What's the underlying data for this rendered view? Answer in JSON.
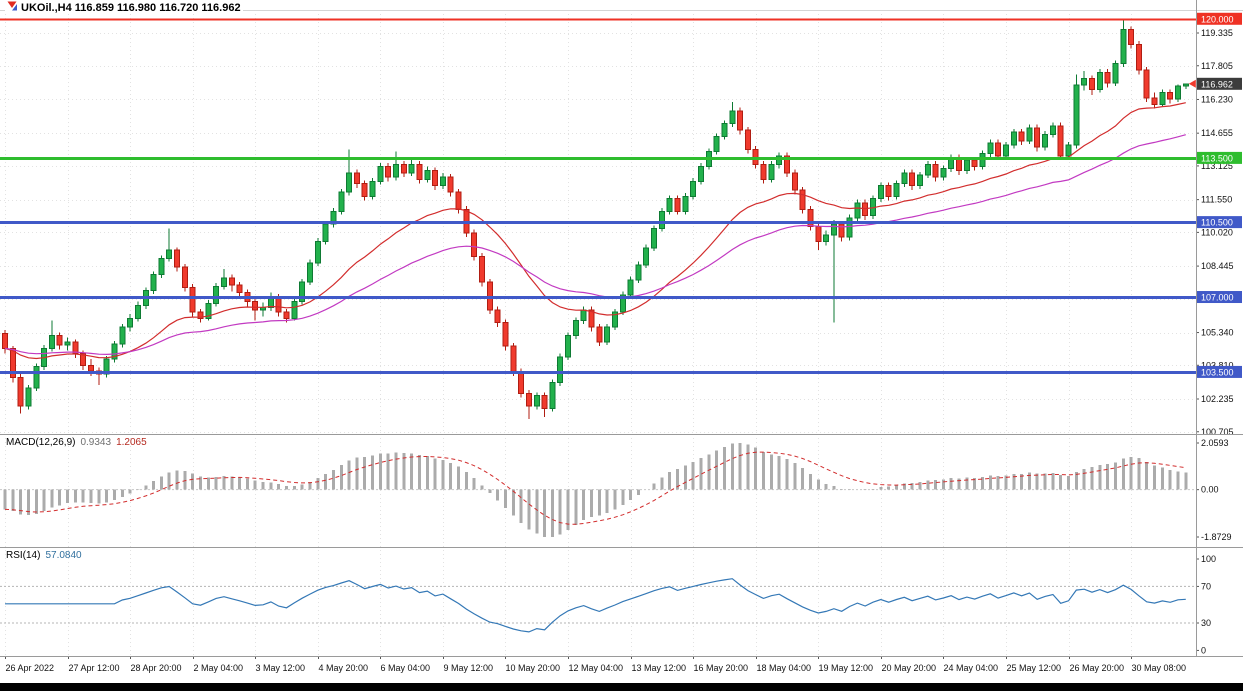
{
  "window": {
    "title_text": "UKOil.,H4 116.859 116.980 116.720 116.962",
    "symbol": "UKOil.",
    "timeframe": "H4",
    "open": "116.859",
    "high": "116.980",
    "low": "116.720",
    "close": "116.962"
  },
  "colors": {
    "background": "#ffffff",
    "grid": "#e2e2e2",
    "candle_up": "#22b14c",
    "candle_up_border": "#0e7a33",
    "candle_down": "#f03a2d",
    "candle_down_border": "#b01d12",
    "ma_fast": "#d22d2d",
    "ma_slow": "#c23ac2",
    "hline_red": "#ef3124",
    "hline_green": "#2ebd2e",
    "hline_blue": "#4059c8",
    "current_price_badge": "#3c3c3c",
    "macd_histogram": "#ababab",
    "macd_signal": "#d22d2d",
    "rsi_line": "#3478b6"
  },
  "chart_data": {
    "type": "candlestick",
    "symbol": "UKOil.",
    "timeframe": "H4",
    "title": "UKOil.,H4 116.859 116.980 116.720 116.962",
    "price_range_visible": [
      100.6,
      120.41
    ],
    "candles": [
      [
        105.3,
        105.45,
        104.35,
        104.6
      ],
      [
        104.6,
        104.72,
        103.0,
        103.25
      ],
      [
        103.25,
        103.4,
        101.55,
        101.9
      ],
      [
        101.9,
        102.9,
        101.75,
        102.75
      ],
      [
        102.75,
        103.9,
        102.6,
        103.75
      ],
      [
        103.75,
        104.75,
        103.6,
        104.6
      ],
      [
        104.6,
        105.9,
        104.45,
        105.2
      ],
      [
        105.2,
        105.35,
        104.55,
        104.75
      ],
      [
        104.75,
        105.1,
        104.5,
        104.9
      ],
      [
        104.9,
        105.02,
        104.15,
        104.35
      ],
      [
        104.35,
        104.5,
        103.6,
        103.8
      ],
      [
        103.8,
        104.1,
        103.3,
        103.55
      ],
      [
        103.55,
        103.7,
        102.9,
        103.4
      ],
      [
        103.4,
        104.25,
        103.25,
        104.1
      ],
      [
        104.1,
        104.95,
        103.95,
        104.8
      ],
      [
        104.8,
        105.75,
        104.65,
        105.6
      ],
      [
        105.6,
        106.2,
        105.4,
        106.0
      ],
      [
        106.0,
        106.8,
        105.85,
        106.6
      ],
      [
        106.6,
        107.45,
        106.45,
        107.3
      ],
      [
        107.3,
        108.2,
        107.15,
        108.05
      ],
      [
        108.05,
        108.95,
        107.9,
        108.8
      ],
      [
        108.8,
        110.2,
        108.65,
        109.2
      ],
      [
        109.2,
        109.32,
        108.2,
        108.4
      ],
      [
        108.4,
        108.55,
        107.25,
        107.45
      ],
      [
        107.45,
        107.6,
        106.1,
        106.3
      ],
      [
        106.3,
        106.45,
        105.8,
        106.0
      ],
      [
        106.0,
        106.85,
        105.9,
        106.7
      ],
      [
        106.7,
        107.65,
        106.55,
        107.5
      ],
      [
        107.5,
        108.3,
        107.35,
        107.9
      ],
      [
        107.9,
        108.05,
        107.25,
        107.55
      ],
      [
        107.55,
        107.7,
        106.95,
        107.2
      ],
      [
        107.2,
        107.35,
        106.55,
        106.8
      ],
      [
        106.8,
        106.95,
        105.9,
        106.4
      ],
      [
        106.4,
        106.75,
        106.1,
        106.5
      ],
      [
        106.5,
        107.2,
        106.35,
        107.0
      ],
      [
        107.0,
        107.15,
        106.1,
        106.3
      ],
      [
        106.3,
        106.45,
        105.8,
        106.0
      ],
      [
        106.0,
        106.95,
        105.9,
        106.8
      ],
      [
        106.8,
        107.85,
        106.65,
        107.7
      ],
      [
        107.7,
        108.75,
        107.55,
        108.6
      ],
      [
        108.6,
        109.75,
        108.45,
        109.6
      ],
      [
        109.6,
        110.55,
        109.45,
        110.4
      ],
      [
        110.4,
        111.15,
        110.25,
        111.0
      ],
      [
        111.0,
        112.05,
        110.85,
        111.9
      ],
      [
        111.9,
        113.9,
        111.75,
        112.8
      ],
      [
        112.8,
        112.95,
        112.1,
        112.3
      ],
      [
        112.3,
        112.45,
        111.5,
        111.7
      ],
      [
        111.7,
        112.55,
        111.55,
        112.4
      ],
      [
        112.4,
        113.25,
        112.25,
        113.1
      ],
      [
        113.1,
        113.25,
        112.4,
        112.6
      ],
      [
        112.6,
        113.8,
        112.45,
        113.2
      ],
      [
        113.2,
        113.35,
        112.6,
        112.8
      ],
      [
        112.8,
        113.4,
        112.65,
        113.2
      ],
      [
        113.2,
        113.35,
        112.3,
        112.5
      ],
      [
        112.5,
        113.1,
        112.35,
        112.9
      ],
      [
        112.9,
        113.05,
        112.0,
        112.2
      ],
      [
        112.2,
        112.8,
        112.05,
        112.6
      ],
      [
        112.6,
        112.75,
        111.7,
        111.9
      ],
      [
        111.9,
        112.05,
        110.9,
        111.1
      ],
      [
        111.1,
        111.25,
        109.8,
        110.0
      ],
      [
        110.0,
        110.15,
        108.7,
        108.9
      ],
      [
        108.9,
        109.05,
        107.5,
        107.7
      ],
      [
        107.7,
        107.85,
        106.2,
        106.4
      ],
      [
        106.4,
        106.55,
        105.6,
        105.8
      ],
      [
        105.8,
        105.95,
        104.5,
        104.7
      ],
      [
        104.7,
        104.85,
        103.3,
        103.5
      ],
      [
        103.5,
        103.65,
        102.3,
        102.5
      ],
      [
        102.5,
        102.65,
        101.3,
        101.9
      ],
      [
        101.9,
        102.55,
        101.75,
        102.4
      ],
      [
        102.4,
        102.55,
        101.4,
        101.8
      ],
      [
        101.8,
        103.15,
        101.65,
        103.0
      ],
      [
        103.0,
        104.35,
        102.85,
        104.2
      ],
      [
        104.2,
        105.35,
        104.05,
        105.2
      ],
      [
        105.2,
        106.05,
        105.05,
        105.9
      ],
      [
        105.9,
        106.55,
        105.75,
        106.4
      ],
      [
        106.4,
        106.55,
        105.4,
        105.6
      ],
      [
        105.6,
        105.75,
        104.7,
        104.9
      ],
      [
        104.9,
        105.75,
        104.75,
        105.6
      ],
      [
        105.6,
        106.45,
        105.45,
        106.3
      ],
      [
        106.3,
        107.25,
        106.15,
        107.1
      ],
      [
        107.1,
        107.95,
        106.95,
        107.8
      ],
      [
        107.8,
        108.65,
        107.65,
        108.5
      ],
      [
        108.5,
        109.45,
        108.35,
        109.3
      ],
      [
        109.3,
        110.35,
        109.15,
        110.2
      ],
      [
        110.2,
        111.15,
        110.05,
        111.0
      ],
      [
        111.0,
        111.75,
        110.85,
        111.6
      ],
      [
        111.6,
        111.75,
        110.85,
        111.0
      ],
      [
        111.0,
        111.85,
        110.85,
        111.7
      ],
      [
        111.7,
        112.55,
        111.55,
        112.4
      ],
      [
        112.4,
        113.25,
        112.25,
        113.1
      ],
      [
        113.1,
        113.95,
        112.95,
        113.8
      ],
      [
        113.8,
        114.65,
        113.65,
        114.5
      ],
      [
        114.5,
        115.25,
        114.35,
        115.1
      ],
      [
        115.1,
        116.1,
        114.95,
        115.7
      ],
      [
        115.7,
        115.85,
        114.6,
        114.8
      ],
      [
        114.8,
        114.95,
        113.7,
        113.9
      ],
      [
        113.9,
        114.05,
        113.0,
        113.2
      ],
      [
        113.2,
        113.35,
        112.3,
        112.5
      ],
      [
        112.5,
        113.35,
        112.35,
        113.2
      ],
      [
        113.2,
        113.75,
        113.0,
        113.6
      ],
      [
        113.6,
        113.75,
        112.6,
        112.8
      ],
      [
        112.8,
        112.95,
        111.8,
        112.0
      ],
      [
        112.0,
        112.15,
        110.9,
        111.1
      ],
      [
        111.1,
        111.25,
        110.1,
        110.3
      ],
      [
        110.3,
        110.45,
        109.2,
        109.6
      ],
      [
        109.6,
        110.1,
        109.4,
        109.9
      ],
      [
        109.9,
        110.6,
        105.8,
        110.4
      ],
      [
        110.4,
        110.55,
        109.6,
        109.8
      ],
      [
        109.8,
        110.85,
        109.65,
        110.7
      ],
      [
        110.7,
        111.55,
        110.55,
        111.4
      ],
      [
        111.4,
        111.55,
        110.6,
        110.8
      ],
      [
        110.8,
        111.75,
        110.65,
        111.6
      ],
      [
        111.6,
        112.35,
        111.45,
        112.2
      ],
      [
        112.2,
        112.35,
        111.5,
        111.7
      ],
      [
        111.7,
        112.45,
        111.55,
        112.3
      ],
      [
        112.3,
        112.95,
        112.15,
        112.8
      ],
      [
        112.8,
        112.95,
        112.0,
        112.2
      ],
      [
        112.2,
        112.85,
        112.05,
        112.7
      ],
      [
        112.7,
        113.35,
        112.55,
        113.2
      ],
      [
        113.2,
        113.35,
        112.4,
        112.6
      ],
      [
        112.6,
        113.15,
        112.45,
        113.0
      ],
      [
        113.0,
        113.65,
        112.85,
        113.5
      ],
      [
        113.5,
        113.65,
        112.7,
        112.9
      ],
      [
        112.9,
        113.55,
        112.75,
        113.4
      ],
      [
        113.4,
        113.55,
        112.9,
        113.1
      ],
      [
        113.1,
        113.85,
        112.95,
        113.7
      ],
      [
        113.7,
        114.35,
        113.55,
        114.2
      ],
      [
        114.2,
        114.35,
        113.4,
        113.6
      ],
      [
        113.6,
        114.25,
        113.45,
        114.1
      ],
      [
        114.1,
        114.85,
        113.95,
        114.7
      ],
      [
        114.7,
        114.85,
        114.1,
        114.3
      ],
      [
        114.3,
        115.05,
        114.15,
        114.9
      ],
      [
        114.9,
        115.05,
        113.8,
        114.0
      ],
      [
        114.0,
        114.75,
        113.85,
        114.6
      ],
      [
        114.6,
        115.15,
        114.45,
        115.0
      ],
      [
        115.0,
        115.15,
        113.4,
        113.6
      ],
      [
        113.6,
        114.25,
        113.45,
        114.1
      ],
      [
        114.1,
        117.4,
        113.95,
        116.9
      ],
      [
        116.9,
        117.55,
        116.65,
        117.2
      ],
      [
        117.2,
        117.35,
        116.45,
        116.7
      ],
      [
        116.7,
        117.65,
        116.55,
        117.5
      ],
      [
        117.5,
        117.65,
        116.8,
        117.0
      ],
      [
        117.0,
        118.05,
        116.85,
        117.9
      ],
      [
        117.9,
        120.0,
        117.75,
        119.5
      ],
      [
        119.5,
        119.65,
        118.6,
        118.8
      ],
      [
        118.8,
        118.95,
        117.4,
        117.6
      ],
      [
        117.6,
        117.75,
        116.1,
        116.3
      ],
      [
        116.3,
        116.55,
        115.8,
        116.0
      ],
      [
        116.0,
        116.7,
        115.9,
        116.55
      ],
      [
        116.55,
        116.7,
        116.05,
        116.25
      ],
      [
        116.25,
        116.92,
        116.1,
        116.86
      ],
      [
        116.859,
        116.98,
        116.72,
        116.962
      ]
    ],
    "moving_averages": [
      {
        "name": "ma-fast",
        "type": "ema",
        "period": 24,
        "color": "#d22d2d"
      },
      {
        "name": "ma-slow",
        "type": "ema",
        "period": 50,
        "color": "#c23ac2"
      }
    ],
    "hlines": [
      {
        "label": "120.000",
        "price": 120.0,
        "color": "#ef3124",
        "width": 2
      },
      {
        "label": "113.500",
        "price": 113.5,
        "color": "#2ebd2e",
        "width": 3
      },
      {
        "label": "110.500",
        "price": 110.5,
        "color": "#4059c8",
        "width": 3
      },
      {
        "label": "107.000",
        "price": 107.0,
        "color": "#4059c8",
        "width": 3
      },
      {
        "label": "103.500",
        "price": 103.5,
        "color": "#4059c8",
        "width": 3
      }
    ],
    "current_price": {
      "value": 116.962,
      "label": "116.962"
    },
    "price_axis": {
      "labels": [
        {
          "label": "119.335",
          "price": 119.335
        },
        {
          "label": "117.805",
          "price": 117.805
        },
        {
          "label": "116.230",
          "price": 116.23
        },
        {
          "label": "114.655",
          "price": 114.655
        },
        {
          "label": "113.125",
          "price": 113.125
        },
        {
          "label": "111.550",
          "price": 111.55
        },
        {
          "label": "110.020",
          "price": 110.02
        },
        {
          "label": "108.445",
          "price": 108.445
        },
        {
          "label": "105.340",
          "price": 105.34
        },
        {
          "label": "103.810",
          "price": 103.81
        },
        {
          "label": "102.235",
          "price": 102.235
        },
        {
          "label": "100.705",
          "price": 100.705
        }
      ],
      "grid_prices": [
        119.335,
        117.805,
        116.23,
        114.655,
        113.125,
        111.55,
        110.02,
        108.445,
        106.915,
        105.34,
        103.81,
        102.235,
        100.705
      ]
    },
    "time_axis": {
      "candle_interval": 8,
      "labels": [
        "26 Apr 2022",
        "27 Apr 12:00",
        "28 Apr 20:00",
        "2 May 04:00",
        "3 May 12:00",
        "4 May 20:00",
        "6 May 04:00",
        "9 May 12:00",
        "10 May 20:00",
        "12 May 04:00",
        "13 May 12:00",
        "16 May 20:00",
        "18 May 04:00",
        "19 May 12:00",
        "20 May 20:00",
        "24 May 04:00",
        "25 May 12:00",
        "26 May 20:00",
        "30 May 08:00"
      ]
    },
    "indicators": {
      "macd": {
        "name": "MACD(12,26,9)",
        "fast": 12,
        "slow": 26,
        "signal": 9,
        "value_main": "0.9343",
        "value_signal": "1.2065",
        "axis_labels": [
          "2.0593",
          "0.00",
          "-1.8729"
        ]
      },
      "rsi": {
        "name": "RSI(14)",
        "period": 14,
        "value": "57.0840",
        "levels": [
          70,
          30
        ],
        "axis_labels": [
          {
            "label": "100",
            "value": 100
          },
          {
            "label": "70",
            "value": 70
          },
          {
            "label": "30",
            "value": 30
          },
          {
            "label": "0",
            "value": 0
          }
        ]
      }
    }
  }
}
